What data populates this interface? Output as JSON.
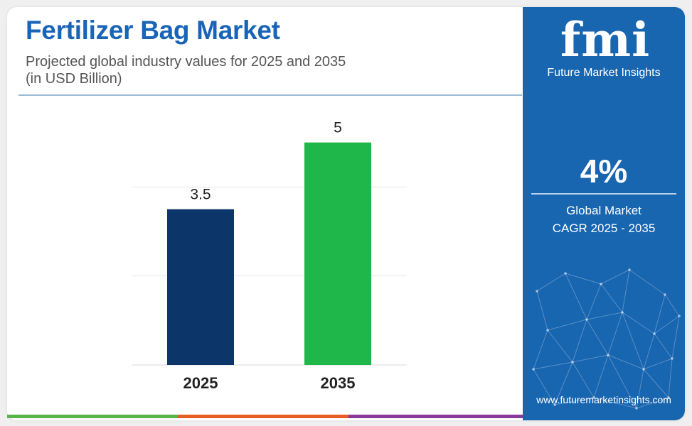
{
  "header": {
    "title": "Fertilizer Bag Market",
    "subtitle_line1": "Projected global industry values for 2025 and 2035",
    "subtitle_line2": "(in USD Billion)"
  },
  "chart_data": {
    "type": "bar",
    "categories": [
      "2025",
      "2035"
    ],
    "values": [
      3.5,
      5
    ],
    "data_labels": [
      "3.5",
      "5"
    ],
    "bar_colors": [
      "#0c356a",
      "#1fb64a"
    ],
    "title": "",
    "xlabel": "",
    "ylabel": "",
    "ylim": [
      0,
      6
    ],
    "grid": true
  },
  "side_panel": {
    "logo_mark": "fmi",
    "logo_tagline": "Future Market Insights",
    "cagr_value": "4%",
    "cagr_label_line1": "Global Market",
    "cagr_label_line2": "CAGR 2025 - 2035",
    "website": "www.futuremarketinsights.com",
    "background_color": "#1865b0"
  },
  "bottom_strip_colors": [
    "#5bb44a",
    "#e85d26",
    "#8a3a9a"
  ]
}
